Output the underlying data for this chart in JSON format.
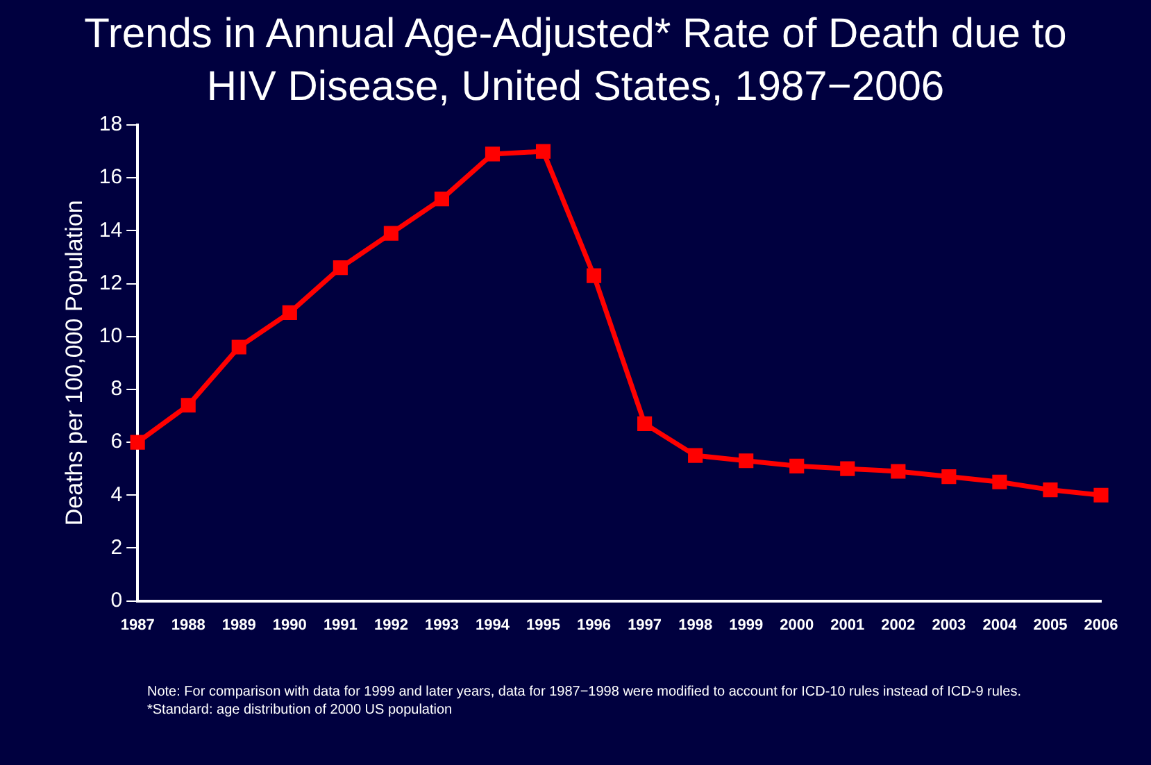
{
  "chart_data": {
    "type": "line",
    "title": "Trends in Annual Age-Adjusted* Rate of Death due to HIV Disease, United States, 1987−2006",
    "ylabel": "Deaths per 100,000 Population",
    "categories": [
      "1987",
      "1988",
      "1989",
      "1990",
      "1991",
      "1992",
      "1993",
      "1994",
      "1995",
      "1996",
      "1997",
      "1998",
      "1999",
      "2000",
      "2001",
      "2002",
      "2003",
      "2004",
      "2005",
      "2006"
    ],
    "series": [
      {
        "color": "#ff0000",
        "values": [
          6.0,
          7.4,
          9.6,
          10.9,
          12.6,
          13.9,
          15.2,
          16.9,
          17.0,
          12.3,
          6.7,
          5.5,
          5.3,
          5.1,
          5.0,
          4.9,
          4.7,
          4.5,
          4.2,
          4.0
        ]
      }
    ],
    "ylim": [
      0,
      18
    ],
    "yticks": [
      0,
      2,
      4,
      6,
      8,
      10,
      12,
      14,
      16,
      18
    ],
    "grid": false,
    "legend": false,
    "marker": "square",
    "line_style": "solid",
    "annotations": [
      "Note: For comparison with data for 1999 and later years, data for 1987−1998 were modified to account for ICD-10 rules instead of ICD-9 rules.",
      "*Standard: age distribution of 2000 US population"
    ]
  }
}
